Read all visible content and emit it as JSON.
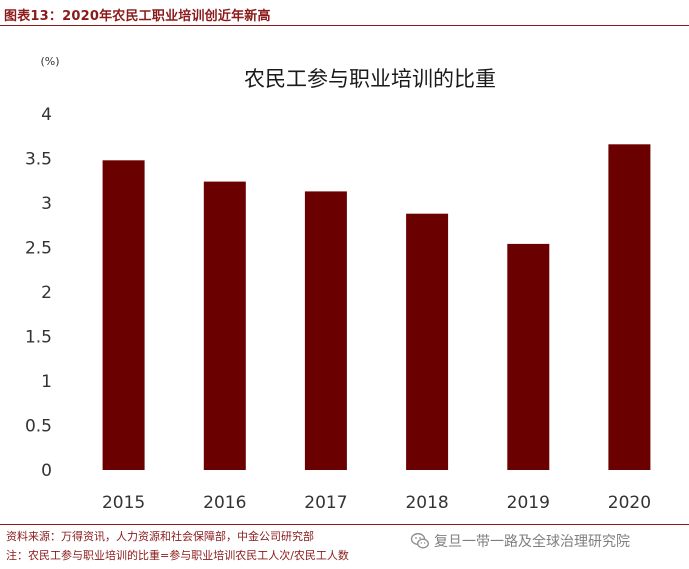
{
  "header": {
    "figure_title": "图表13：2020年农民工职业培训创近年新高"
  },
  "chart_data": {
    "type": "bar",
    "title": "农民工参与职业培训的比重",
    "unit_label": "(%)",
    "categories": [
      "2015",
      "2016",
      "2017",
      "2018",
      "2019",
      "2020"
    ],
    "values": [
      3.48,
      3.24,
      3.13,
      2.88,
      2.54,
      3.66
    ],
    "ylim": [
      0,
      4
    ],
    "yticks": [
      "0",
      "0.5",
      "1",
      "1.5",
      "2",
      "2.5",
      "3",
      "3.5",
      "4"
    ],
    "xlabel": "",
    "ylabel": "",
    "grid": false,
    "bar_color": "#6b0000"
  },
  "footer": {
    "source": "资料来源：万得资讯，人力资源和社会保障部，中金公司研究部",
    "note": "注：农民工参与职业培训的比重=参与职业培训农民工人次/农民工人数"
  },
  "watermark": {
    "icon": "wechat-icon",
    "text": "复旦一带一路及全球治理研究院"
  },
  "colors": {
    "accent": "#8b1a1a",
    "bar": "#6b0000",
    "axis_text": "#333333",
    "watermark": "#7f7f7f"
  }
}
